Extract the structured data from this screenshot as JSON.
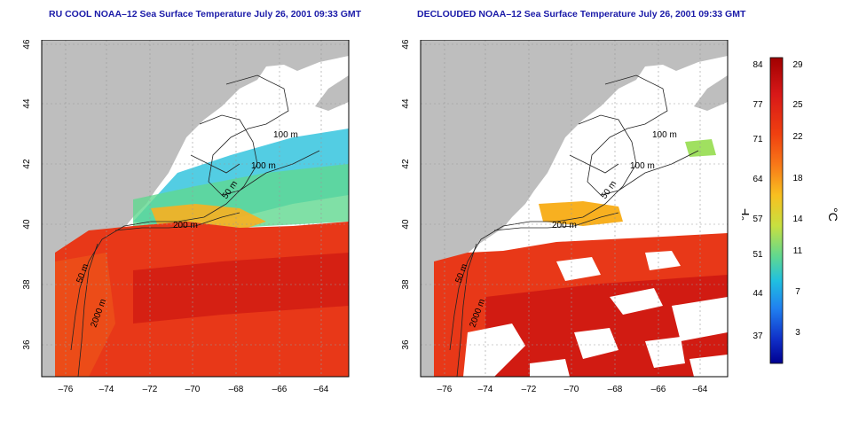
{
  "left_map": {
    "title": "RU COOL NOAA–12 Sea Surface Temperature July 26, 2001 09:33 GMT"
  },
  "right_map": {
    "title": "DECLOUDED NOAA–12 Sea Surface Temperature July 26, 2001 09:33 GMT"
  },
  "axes": {
    "lon_ticks": [
      "–76",
      "–74",
      "–72",
      "–70",
      "–68",
      "–66",
      "–64"
    ],
    "lat_ticks": [
      "46",
      "44",
      "42",
      "40",
      "38",
      "36"
    ]
  },
  "contour_labels": [
    "100 m",
    "100 m",
    "50 m",
    "200 m",
    "50 m",
    "2000 m"
  ],
  "right_contour_labels": [
    "100 m",
    "100 m",
    "50 m",
    "200 m",
    "50 m",
    "2000 m"
  ],
  "colorbar": {
    "fahrenheit_label": "°F",
    "celsius_label": "°C",
    "fahrenheit_ticks": [
      "84",
      "77",
      "71",
      "64",
      "57",
      "51",
      "44",
      "37"
    ],
    "celsius_ticks": [
      "29",
      "25",
      "22",
      "18",
      "14",
      "11",
      "7",
      "3"
    ],
    "colors": [
      "#a00000",
      "#d81818",
      "#f04010",
      "#f87818",
      "#f8c020",
      "#c8e040",
      "#60d890",
      "#20c0e0",
      "#2080f0",
      "#1030c8",
      "#000090"
    ]
  },
  "colors": {
    "land": "#bebebe",
    "sea_warm": "#e83818",
    "sea_hot": "#c81010",
    "cloud": "#ffffff",
    "title_blue": "#1a1aa8"
  }
}
